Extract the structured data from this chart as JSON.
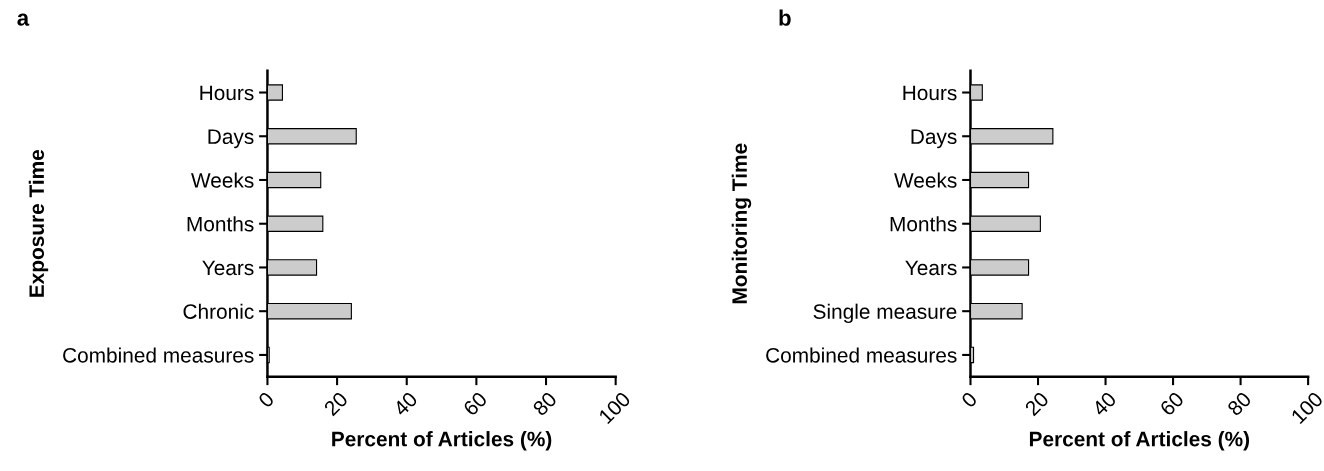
{
  "chart_data": [
    {
      "type": "bar",
      "orientation": "horizontal",
      "title": "a",
      "xlabel": "Percent of Articles (%)",
      "ylabel": "Exposure Time",
      "categories": [
        "Hours",
        "Days",
        "Weeks",
        "Months",
        "Years",
        "Chronic",
        "Combined measures"
      ],
      "values": [
        4.3,
        25.5,
        15.3,
        15.9,
        14.1,
        24.1,
        0.5
      ],
      "color": "#cccccc",
      "xlim": [
        0,
        100
      ],
      "xticks": [
        0,
        20,
        40,
        60,
        80,
        100
      ],
      "grid": false,
      "legend": false
    },
    {
      "type": "bar",
      "orientation": "horizontal",
      "title": "b",
      "xlabel": "Percent of Articles (%)",
      "ylabel": "Monitoring Time",
      "categories": [
        "Hours",
        "Days",
        "Weeks",
        "Months",
        "Years",
        "Single measure",
        "Combined measures"
      ],
      "values": [
        3.5,
        24.4,
        17.2,
        20.7,
        17.2,
        15.3,
        0.9
      ],
      "color": "#cccccc",
      "xlim": [
        0,
        100
      ],
      "xticks": [
        0,
        20,
        40,
        60,
        80,
        100
      ],
      "grid": false,
      "legend": false
    }
  ]
}
